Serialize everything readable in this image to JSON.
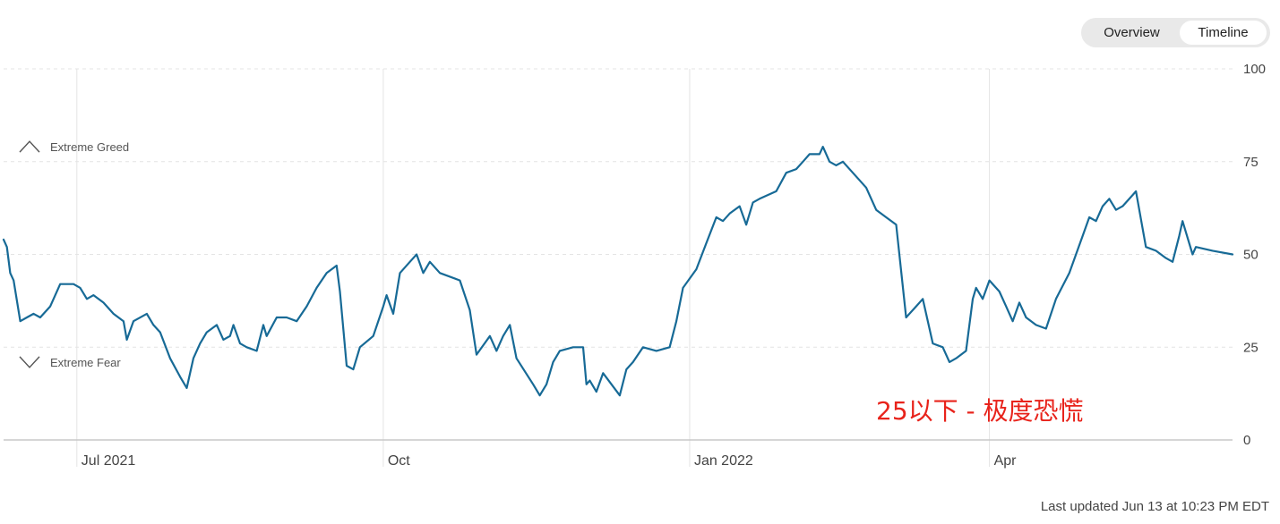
{
  "toggle": {
    "overview_label": "Overview",
    "timeline_label": "Timeline",
    "selected": "Timeline"
  },
  "annotation": {
    "text": "25以下 - 极度恐慌",
    "color": "#e8231b"
  },
  "last_updated": "Last updated Jun 13 at 10:23 PM EDT",
  "colors": {
    "line": "#176a96",
    "grid": "#e4e4e4",
    "axis": "#c8c8c8",
    "text": "#444444"
  },
  "chart_data": {
    "type": "line",
    "x_start": "2021-06-09",
    "x_end": "2022-06-13",
    "ylim": [
      0,
      100
    ],
    "y_ticks": [
      0,
      25,
      50,
      75,
      100
    ],
    "x_ticks": [
      {
        "label": "Jul 2021",
        "date": "2021-07-01"
      },
      {
        "label": "Oct",
        "date": "2021-10-01"
      },
      {
        "label": "Jan 2022",
        "date": "2022-01-01"
      },
      {
        "label": "Apr",
        "date": "2022-04-01"
      }
    ],
    "zones": [
      {
        "label": "Extreme Greed",
        "value": 79,
        "icon": "chevron-up-icon"
      },
      {
        "label": "Extreme Fear",
        "value": 21,
        "icon": "chevron-down-icon"
      }
    ],
    "grid": true,
    "series": [
      {
        "points": [
          [
            "2021-06-09",
            54
          ],
          [
            "2021-06-10",
            52
          ],
          [
            "2021-06-11",
            45
          ],
          [
            "2021-06-12",
            43
          ],
          [
            "2021-06-14",
            32
          ],
          [
            "2021-06-16",
            33
          ],
          [
            "2021-06-18",
            34
          ],
          [
            "2021-06-20",
            33
          ],
          [
            "2021-06-23",
            36
          ],
          [
            "2021-06-26",
            42
          ],
          [
            "2021-06-30",
            42
          ],
          [
            "2021-07-02",
            41
          ],
          [
            "2021-07-04",
            38
          ],
          [
            "2021-07-06",
            39
          ],
          [
            "2021-07-09",
            37
          ],
          [
            "2021-07-12",
            34
          ],
          [
            "2021-07-15",
            32
          ],
          [
            "2021-07-16",
            27
          ],
          [
            "2021-07-18",
            32
          ],
          [
            "2021-07-22",
            34
          ],
          [
            "2021-07-24",
            31
          ],
          [
            "2021-07-26",
            29
          ],
          [
            "2021-07-29",
            22
          ],
          [
            "2021-08-01",
            17
          ],
          [
            "2021-08-03",
            14
          ],
          [
            "2021-08-05",
            22
          ],
          [
            "2021-08-07",
            26
          ],
          [
            "2021-08-09",
            29
          ],
          [
            "2021-08-12",
            31
          ],
          [
            "2021-08-14",
            27
          ],
          [
            "2021-08-16",
            28
          ],
          [
            "2021-08-17",
            31
          ],
          [
            "2021-08-19",
            26
          ],
          [
            "2021-08-21",
            25
          ],
          [
            "2021-08-24",
            24
          ],
          [
            "2021-08-26",
            31
          ],
          [
            "2021-08-27",
            28
          ],
          [
            "2021-08-30",
            33
          ],
          [
            "2021-09-02",
            33
          ],
          [
            "2021-09-05",
            32
          ],
          [
            "2021-09-08",
            36
          ],
          [
            "2021-09-11",
            41
          ],
          [
            "2021-09-14",
            45
          ],
          [
            "2021-09-17",
            47
          ],
          [
            "2021-09-18",
            40
          ],
          [
            "2021-09-20",
            20
          ],
          [
            "2021-09-22",
            19
          ],
          [
            "2021-09-24",
            25
          ],
          [
            "2021-09-28",
            28
          ],
          [
            "2021-10-01",
            36
          ],
          [
            "2021-10-02",
            39
          ],
          [
            "2021-10-04",
            34
          ],
          [
            "2021-10-06",
            45
          ],
          [
            "2021-10-09",
            48
          ],
          [
            "2021-10-11",
            50
          ],
          [
            "2021-10-13",
            45
          ],
          [
            "2021-10-15",
            48
          ],
          [
            "2021-10-18",
            45
          ],
          [
            "2021-10-24",
            43
          ],
          [
            "2021-10-27",
            35
          ],
          [
            "2021-10-29",
            23
          ],
          [
            "2021-11-02",
            28
          ],
          [
            "2021-11-04",
            24
          ],
          [
            "2021-11-06",
            28
          ],
          [
            "2021-11-08",
            31
          ],
          [
            "2021-11-10",
            22
          ],
          [
            "2021-11-15",
            15
          ],
          [
            "2021-11-17",
            12
          ],
          [
            "2021-11-19",
            15
          ],
          [
            "2021-11-21",
            21
          ],
          [
            "2021-11-23",
            24
          ],
          [
            "2021-11-27",
            25
          ],
          [
            "2021-11-30",
            25
          ],
          [
            "2021-12-01",
            15
          ],
          [
            "2021-12-02",
            16
          ],
          [
            "2021-12-04",
            13
          ],
          [
            "2021-12-06",
            18
          ],
          [
            "2021-12-11",
            12
          ],
          [
            "2021-12-13",
            19
          ],
          [
            "2021-12-15",
            21
          ],
          [
            "2021-12-18",
            25
          ],
          [
            "2021-12-22",
            24
          ],
          [
            "2021-12-26",
            25
          ],
          [
            "2021-12-28",
            32
          ],
          [
            "2021-12-30",
            41
          ],
          [
            "2022-01-03",
            46
          ],
          [
            "2022-01-06",
            53
          ],
          [
            "2022-01-09",
            60
          ],
          [
            "2022-01-11",
            59
          ],
          [
            "2022-01-13",
            61
          ],
          [
            "2022-01-16",
            63
          ],
          [
            "2022-01-18",
            58
          ],
          [
            "2022-01-20",
            64
          ],
          [
            "2022-01-22",
            65
          ],
          [
            "2022-01-27",
            67
          ],
          [
            "2022-01-30",
            72
          ],
          [
            "2022-02-02",
            73
          ],
          [
            "2022-02-04",
            75
          ],
          [
            "2022-02-06",
            77
          ],
          [
            "2022-02-09",
            77
          ],
          [
            "2022-02-10",
            79
          ],
          [
            "2022-02-12",
            75
          ],
          [
            "2022-02-14",
            74
          ],
          [
            "2022-02-16",
            75
          ],
          [
            "2022-02-19",
            72
          ],
          [
            "2022-02-23",
            68
          ],
          [
            "2022-02-26",
            62
          ],
          [
            "2022-03-01",
            60
          ],
          [
            "2022-03-04",
            58
          ],
          [
            "2022-03-07",
            33
          ],
          [
            "2022-03-10",
            36
          ],
          [
            "2022-03-12",
            38
          ],
          [
            "2022-03-15",
            26
          ],
          [
            "2022-03-18",
            25
          ],
          [
            "2022-03-20",
            21
          ],
          [
            "2022-03-22",
            22
          ],
          [
            "2022-03-25",
            24
          ],
          [
            "2022-03-27",
            38
          ],
          [
            "2022-03-28",
            41
          ],
          [
            "2022-03-30",
            38
          ],
          [
            "2022-04-01",
            43
          ],
          [
            "2022-04-04",
            40
          ],
          [
            "2022-04-06",
            36
          ],
          [
            "2022-04-08",
            32
          ],
          [
            "2022-04-10",
            37
          ],
          [
            "2022-04-12",
            33
          ],
          [
            "2022-04-15",
            31
          ],
          [
            "2022-04-18",
            30
          ],
          [
            "2022-04-21",
            38
          ],
          [
            "2022-04-25",
            45
          ],
          [
            "2022-04-29",
            55
          ],
          [
            "2022-05-01",
            60
          ],
          [
            "2022-05-03",
            59
          ],
          [
            "2022-05-05",
            63
          ],
          [
            "2022-05-07",
            65
          ],
          [
            "2022-05-09",
            62
          ],
          [
            "2022-05-11",
            63
          ],
          [
            "2022-05-14",
            66
          ],
          [
            "2022-05-15",
            67
          ],
          [
            "2022-05-18",
            52
          ],
          [
            "2022-05-21",
            51
          ],
          [
            "2022-05-24",
            49
          ],
          [
            "2022-05-26",
            48
          ],
          [
            "2022-05-28",
            55
          ],
          [
            "2022-05-29",
            59
          ],
          [
            "2022-06-01",
            50
          ],
          [
            "2022-06-02",
            52
          ],
          [
            "2022-06-07",
            51
          ],
          [
            "2022-06-13",
            50
          ]
        ]
      }
    ]
  }
}
